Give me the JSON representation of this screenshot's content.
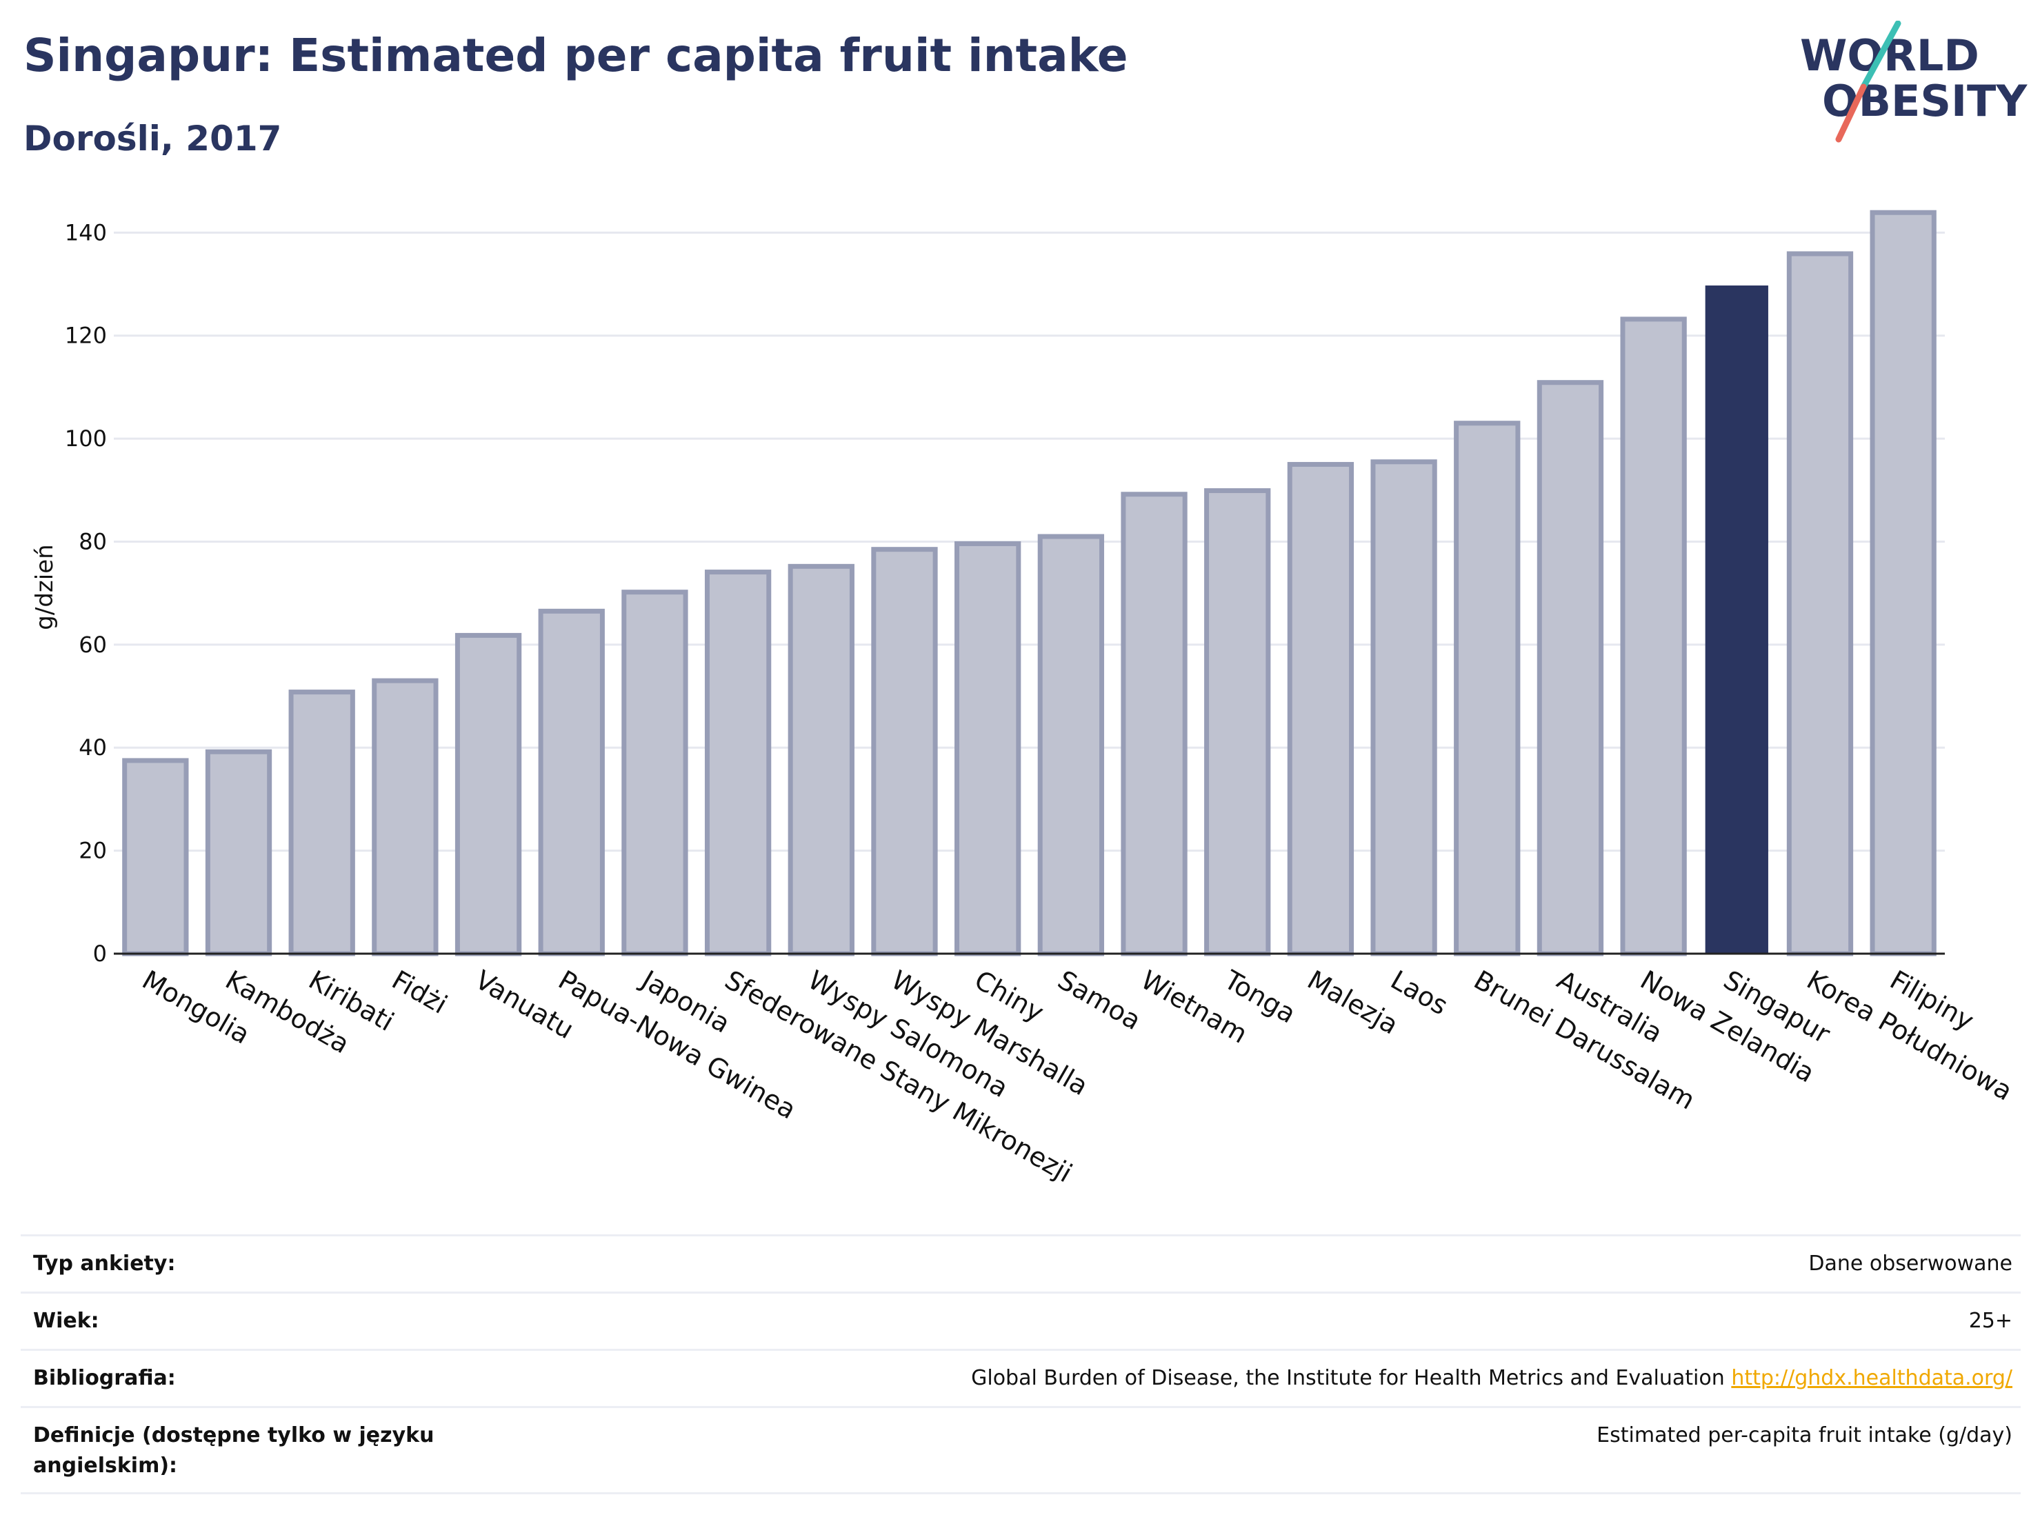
{
  "header": {
    "title": "Singapur: Estimated per capita fruit intake",
    "subtitle": "Dorośli, 2017",
    "logo_line1": "WORLD",
    "logo_line2": "OBESITY"
  },
  "colors": {
    "primary": "#2a3560",
    "bar_default": "#bfc2d0",
    "bar_border": "#979db6",
    "highlight": "#2a3560",
    "logo_slash_top": "#3cbfb4",
    "logo_slash_bottom": "#e8685a",
    "link": "#f0a800"
  },
  "chart_data": {
    "type": "bar",
    "ylabel": "g/dzień",
    "ylim": [
      0,
      145
    ],
    "yticks": [
      0,
      20,
      40,
      60,
      80,
      100,
      120,
      140
    ],
    "grid": true,
    "highlight": "Singapur",
    "categories": [
      "Mongolia",
      "Kambodża",
      "Kiribati",
      "Fidżi",
      "Vanuatu",
      "Papua-Nowa Gwinea",
      "Japonia",
      "Sfederowane Stany Mikronezji",
      "Wyspy Salomona",
      "Wyspy Marshalla",
      "Chiny",
      "Samoa",
      "Wietnam",
      "Tonga",
      "Malezja",
      "Laos",
      "Brunei Darussalam",
      "Australia",
      "Nowa Zelandia",
      "Singapur",
      "Korea Południowa",
      "Filipiny"
    ],
    "values": [
      37.5,
      39.2,
      50.8,
      53.0,
      61.8,
      66.5,
      70.2,
      74.1,
      75.2,
      78.5,
      79.6,
      81.0,
      89.2,
      89.9,
      95.0,
      95.5,
      103.0,
      110.9,
      123.2,
      129.6,
      135.9,
      143.9
    ]
  },
  "info": {
    "rows": [
      {
        "label": "Typ ankiety:",
        "value": "Dane obserwowane"
      },
      {
        "label": "Wiek:",
        "value": "25+"
      },
      {
        "label": "Bibliografia:",
        "value": "Global Burden of Disease, the Institute for Health Metrics and Evaluation",
        "link": "http://ghdx.healthdata.org/"
      },
      {
        "label": "Definicje (dostępne tylko w języku angielskim):",
        "value": "Estimated per-capita fruit intake (g/day)"
      }
    ]
  }
}
